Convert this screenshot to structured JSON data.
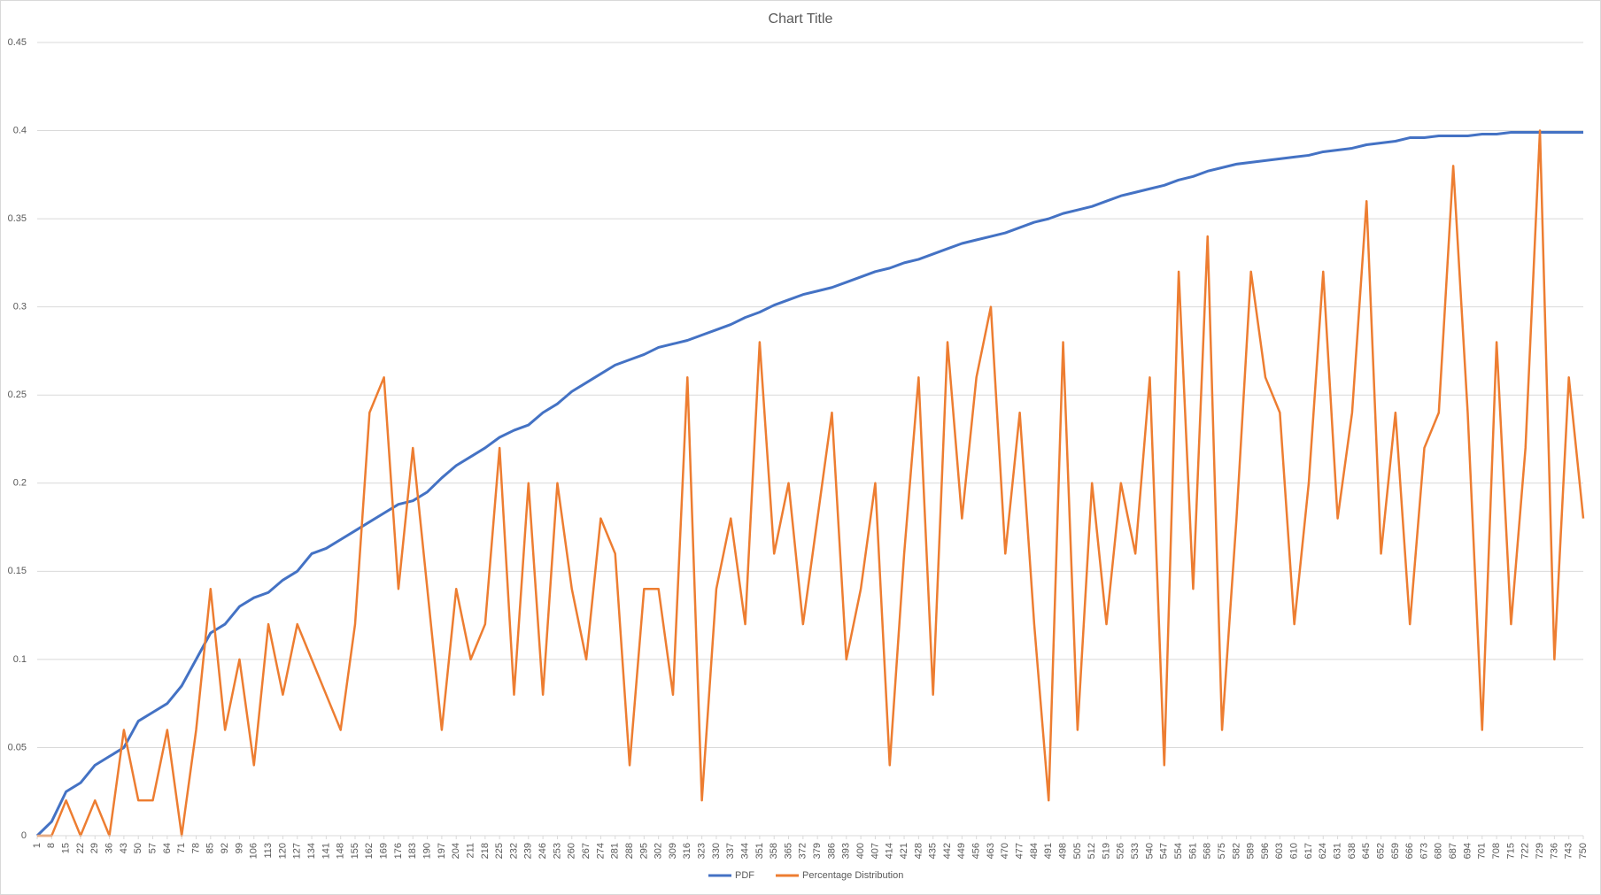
{
  "chart_data": {
    "type": "line",
    "title": "Chart Title",
    "x": [
      1,
      8,
      15,
      22,
      29,
      36,
      43,
      50,
      57,
      64,
      71,
      78,
      85,
      92,
      99,
      106,
      113,
      120,
      127,
      134,
      141,
      148,
      155,
      162,
      169,
      176,
      183,
      190,
      197,
      204,
      211,
      218,
      225,
      232,
      239,
      246,
      253,
      260,
      267,
      274,
      281,
      288,
      295,
      302,
      309,
      316,
      323,
      330,
      337,
      344,
      351,
      358,
      365,
      372,
      379,
      386,
      393,
      400,
      407,
      414,
      421,
      428,
      435,
      442,
      449,
      456,
      463,
      470,
      477,
      484,
      491,
      498,
      505,
      512,
      519,
      526,
      533,
      540,
      547,
      554,
      561,
      568,
      575,
      582,
      589,
      596,
      603,
      610,
      617,
      624,
      631,
      638,
      645,
      652,
      659,
      666,
      673,
      680,
      687,
      694,
      701,
      708,
      715,
      722,
      729,
      736,
      743,
      750
    ],
    "series": [
      {
        "name": "PDF",
        "color": "#4472c4",
        "values": [
          0,
          0.008,
          0.025,
          0.03,
          0.04,
          0.045,
          0.05,
          0.065,
          0.07,
          0.075,
          0.085,
          0.1,
          0.115,
          0.12,
          0.13,
          0.135,
          0.138,
          0.145,
          0.15,
          0.16,
          0.163,
          0.168,
          0.173,
          0.178,
          0.183,
          0.188,
          0.19,
          0.195,
          0.203,
          0.21,
          0.215,
          0.22,
          0.226,
          0.23,
          0.233,
          0.24,
          0.245,
          0.252,
          0.257,
          0.262,
          0.267,
          0.27,
          0.273,
          0.277,
          0.279,
          0.281,
          0.284,
          0.287,
          0.29,
          0.294,
          0.297,
          0.301,
          0.304,
          0.307,
          0.309,
          0.311,
          0.314,
          0.317,
          0.32,
          0.322,
          0.325,
          0.327,
          0.33,
          0.333,
          0.336,
          0.338,
          0.34,
          0.342,
          0.345,
          0.348,
          0.35,
          0.353,
          0.355,
          0.357,
          0.36,
          0.363,
          0.365,
          0.367,
          0.369,
          0.372,
          0.374,
          0.377,
          0.379,
          0.381,
          0.382,
          0.383,
          0.384,
          0.385,
          0.386,
          0.388,
          0.389,
          0.39,
          0.392,
          0.393,
          0.394,
          0.396,
          0.396,
          0.397,
          0.397,
          0.397,
          0.398,
          0.398,
          0.399,
          0.399,
          0.399,
          0.399,
          0.399,
          0.399
        ]
      },
      {
        "name": "Percentage Distribution",
        "color": "#ed7d31",
        "values": [
          0,
          0,
          0.02,
          0,
          0.02,
          0,
          0.06,
          0.02,
          0.02,
          0.06,
          0,
          0.06,
          0.14,
          0.06,
          0.1,
          0.04,
          0.12,
          0.08,
          0.12,
          0.1,
          0.08,
          0.06,
          0.12,
          0.24,
          0.26,
          0.14,
          0.22,
          0.14,
          0.06,
          0.14,
          0.1,
          0.12,
          0.22,
          0.08,
          0.2,
          0.08,
          0.2,
          0.14,
          0.1,
          0.18,
          0.16,
          0.04,
          0.14,
          0.14,
          0.08,
          0.26,
          0.02,
          0.14,
          0.18,
          0.12,
          0.28,
          0.16,
          0.2,
          0.12,
          0.18,
          0.24,
          0.1,
          0.14,
          0.2,
          0.04,
          0.16,
          0.26,
          0.08,
          0.28,
          0.18,
          0.26,
          0.3,
          0.16,
          0.24,
          0.12,
          0.02,
          0.28,
          0.06,
          0.2,
          0.12,
          0.2,
          0.16,
          0.26,
          0.04,
          0.32,
          0.14,
          0.34,
          0.06,
          0.18,
          0.32,
          0.26,
          0.24,
          0.12,
          0.2,
          0.32,
          0.18,
          0.24,
          0.36,
          0.16,
          0.24,
          0.12,
          0.22,
          0.24,
          0.38,
          0.24,
          0.06,
          0.28,
          0.12,
          0.22,
          0.4,
          0.1,
          0.26,
          0.18
        ]
      }
    ],
    "xlim": [
      1,
      750
    ],
    "xticks": [
      1,
      8,
      15,
      22,
      29,
      36,
      43,
      50,
      57,
      64,
      71,
      78,
      85,
      92,
      99,
      106,
      113,
      120,
      127,
      134,
      141,
      148,
      155,
      162,
      169,
      176,
      183,
      190,
      197,
      204,
      211,
      218,
      225,
      232,
      239,
      246,
      253,
      260,
      267,
      274,
      281,
      288,
      295,
      302,
      309,
      316,
      323,
      330,
      337,
      344,
      351,
      358,
      365,
      372,
      379,
      386,
      393,
      400,
      407,
      414,
      421,
      428,
      435,
      442,
      449,
      456,
      463,
      470,
      477,
      484,
      491,
      498,
      505,
      512,
      519,
      526,
      533,
      540,
      547,
      554,
      561,
      568,
      575,
      582,
      589,
      596,
      603,
      610,
      617,
      624,
      631,
      638,
      645,
      652,
      659,
      666,
      673,
      680,
      687,
      694,
      701,
      708,
      715,
      722,
      729,
      736,
      743,
      750
    ],
    "ylim": [
      0,
      0.45
    ],
    "yticks": [
      0,
      0.05,
      0.1,
      0.15,
      0.2,
      0.25,
      0.3,
      0.35,
      0.4,
      0.45
    ],
    "grid": true,
    "legend": "bottom"
  }
}
